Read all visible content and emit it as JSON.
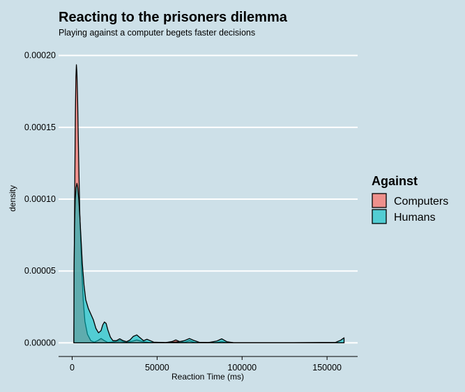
{
  "chart_data": {
    "type": "area",
    "title": "Reacting to the prisoners dilemma",
    "subtitle": "Playing against a computer begets faster decisions",
    "xlabel": "Reaction Time (ms)",
    "ylabel": "density",
    "xlim": [
      -8000,
      168000
    ],
    "ylim": [
      -9.5e-06,
      0.0002105
    ],
    "x_ticks": [
      0,
      50000,
      100000,
      150000
    ],
    "x_tick_labels": [
      "0",
      "50000",
      "100000",
      "150000"
    ],
    "y_ticks": [
      0,
      5e-05,
      0.0001,
      0.00015,
      0.0002
    ],
    "y_tick_labels": [
      "0.00000",
      "0.00005",
      "0.00010",
      "0.00015",
      "0.00020"
    ],
    "grid": "horizontal",
    "legend": {
      "title": "Against",
      "position": "right"
    },
    "series": [
      {
        "name": "Computers",
        "color": "#f8766d",
        "opacity": 0.75,
        "points": [
          [
            1000,
            0.0
          ],
          [
            1100,
            2e-05
          ],
          [
            1300,
            7e-05
          ],
          [
            1600,
            0.00012
          ],
          [
            1900,
            0.00016
          ],
          [
            2200,
            0.000185
          ],
          [
            2500,
            0.0001935
          ],
          [
            2800,
            0.000188
          ],
          [
            3200,
            0.00017
          ],
          [
            3800,
            0.00013
          ],
          [
            4500,
            9e-05
          ],
          [
            5500,
            5.5e-05
          ],
          [
            6500,
            3e-05
          ],
          [
            7500,
            1.5e-05
          ],
          [
            9000,
            6e-06
          ],
          [
            11000,
            1.5e-06
          ],
          [
            13000,
            5e-07
          ],
          [
            15000,
            1.5e-06
          ],
          [
            17000,
            3e-06
          ],
          [
            19000,
            1.5e-06
          ],
          [
            21000,
            3e-07
          ],
          [
            25000,
            8e-07
          ],
          [
            28000,
            1.5e-06
          ],
          [
            31000,
            5e-07
          ],
          [
            35000,
            1e-06
          ],
          [
            38000,
            2e-06
          ],
          [
            41000,
            1e-06
          ],
          [
            45000,
            3e-07
          ],
          [
            55000,
            2e-07
          ],
          [
            59000,
            1e-06
          ],
          [
            61000,
            2e-06
          ],
          [
            63000,
            1e-06
          ],
          [
            66000,
            3e-07
          ],
          [
            69000,
            1.5e-06
          ],
          [
            72000,
            3e-07
          ],
          [
            85000,
            2e-07
          ],
          [
            88000,
            1e-06
          ],
          [
            91000,
            2e-07
          ],
          [
            120000,
            1e-07
          ],
          [
            160000,
            1e-07
          ],
          [
            160000,
            0.0
          ]
        ]
      },
      {
        "name": "Humans",
        "color": "#00bfc4",
        "opacity": 0.6,
        "points": [
          [
            1000,
            0.0
          ],
          [
            1100,
            5e-05
          ],
          [
            1400,
            8e-05
          ],
          [
            1800,
            0.0001
          ],
          [
            2300,
            0.000108
          ],
          [
            2800,
            0.000111
          ],
          [
            3300,
            0.000108
          ],
          [
            3900,
            0.0001
          ],
          [
            4500,
            8.8e-05
          ],
          [
            5200,
            7.3e-05
          ],
          [
            6000,
            5.5e-05
          ],
          [
            7000,
            4e-05
          ],
          [
            8000,
            3e-05
          ],
          [
            9500,
            2.4e-05
          ],
          [
            11000,
            2e-05
          ],
          [
            12500,
            1.6e-05
          ],
          [
            14000,
            1e-05
          ],
          [
            15500,
            7e-06
          ],
          [
            17000,
            8.5e-06
          ],
          [
            18000,
            1.25e-05
          ],
          [
            19000,
            1.45e-05
          ],
          [
            20000,
            1.35e-05
          ],
          [
            21000,
            9e-06
          ],
          [
            22500,
            4e-06
          ],
          [
            24000,
            1.5e-06
          ],
          [
            26000,
            1.5e-06
          ],
          [
            28000,
            2.8e-06
          ],
          [
            30000,
            1.5e-06
          ],
          [
            32000,
            8e-07
          ],
          [
            34000,
            2e-06
          ],
          [
            36000,
            4.5e-06
          ],
          [
            38000,
            5.5e-06
          ],
          [
            40000,
            3.5e-06
          ],
          [
            42000,
            1.5e-06
          ],
          [
            44000,
            2.5e-06
          ],
          [
            46000,
            1.5e-06
          ],
          [
            48000,
            5e-07
          ],
          [
            55000,
            2e-07
          ],
          [
            60000,
            5e-07
          ],
          [
            63000,
            8e-07
          ],
          [
            66000,
            1.5e-06
          ],
          [
            69000,
            3e-06
          ],
          [
            72000,
            1.5e-06
          ],
          [
            75000,
            3e-07
          ],
          [
            80000,
            2e-07
          ],
          [
            85000,
            1.2e-06
          ],
          [
            88000,
            2.8e-06
          ],
          [
            91000,
            8e-07
          ],
          [
            95000,
            1e-07
          ],
          [
            130000,
            1e-07
          ],
          [
            155000,
            3e-07
          ],
          [
            158000,
            1.8e-06
          ],
          [
            160000,
            3.5e-06
          ],
          [
            160000,
            0.0
          ]
        ]
      }
    ]
  }
}
